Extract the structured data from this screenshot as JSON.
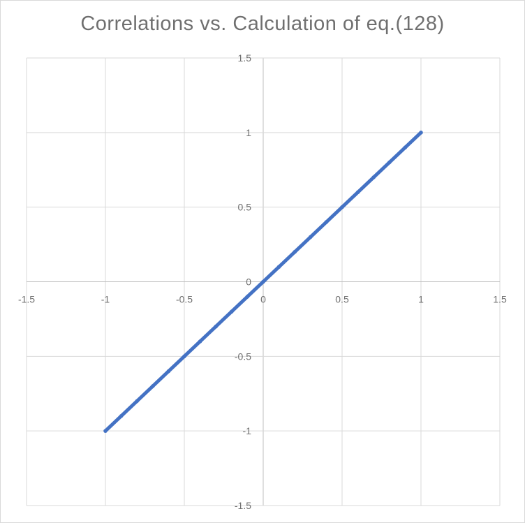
{
  "chart_data": {
    "type": "scatter",
    "title": "Correlations vs. Calculation of eq.(128)",
    "xlabel": "",
    "ylabel": "",
    "xlim": [
      -1.5,
      1.5
    ],
    "ylim": [
      -1.5,
      1.5
    ],
    "x_ticks": [
      -1.5,
      -1,
      -0.5,
      0,
      0.5,
      1,
      1.5
    ],
    "y_ticks": [
      -1.5,
      -1,
      -0.5,
      0,
      0.5,
      1,
      1.5
    ],
    "x_tick_labels": [
      "-1.5",
      "-1",
      "-0.5",
      "0",
      "0.5",
      "1",
      "1.5"
    ],
    "y_tick_labels": [
      "-1.5",
      "-1",
      "-0.5",
      "0",
      "0.5",
      "1",
      "1.5"
    ],
    "grid": true,
    "legend": "none",
    "series": [
      {
        "color": "#4472c4",
        "x": [
          -1,
          -0.9,
          -0.8,
          -0.7,
          -0.6,
          -0.5,
          -0.4,
          -0.3,
          -0.2,
          -0.1,
          0,
          0.1,
          0.2,
          0.3,
          0.4,
          0.5,
          0.6,
          0.7,
          0.8,
          0.9,
          1
        ],
        "y": [
          -1,
          -0.9,
          -0.8,
          -0.7,
          -0.6,
          -0.5,
          -0.4,
          -0.3,
          -0.2,
          -0.1,
          0,
          0.1,
          0.2,
          0.3,
          0.4,
          0.5,
          0.6,
          0.7,
          0.8,
          0.9,
          1
        ]
      }
    ]
  }
}
